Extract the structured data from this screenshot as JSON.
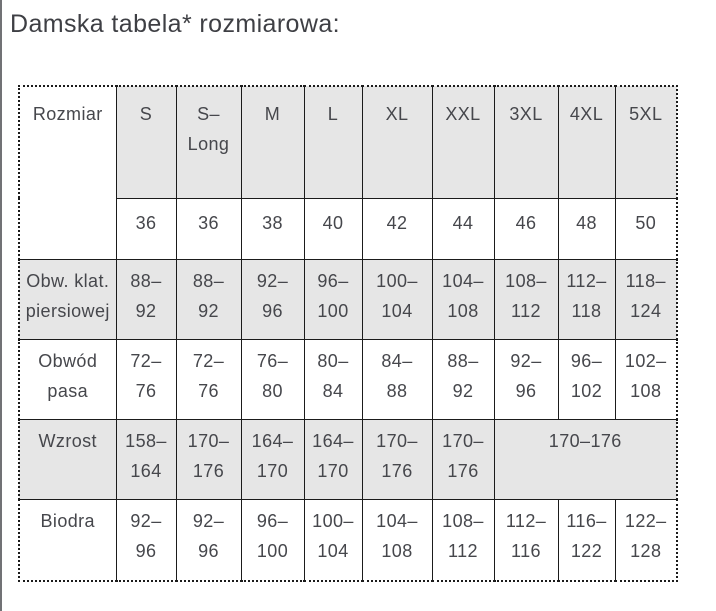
{
  "page": {
    "title": "Damska tabela* rozmiarowa:"
  },
  "colors": {
    "shade": "#e6e6e6",
    "text": "#46474c",
    "title_text": "#3e3f44",
    "border": "#1b1b1b",
    "edge_line": "#717275",
    "background": "#ffffff"
  },
  "table": {
    "corner_label": "Rozmiar",
    "size_labels": [
      "S",
      "S–\nLong",
      "M",
      "L",
      "XL",
      "XXL",
      "3XL",
      "4XL",
      "5XL"
    ],
    "confection_numbers": [
      "36",
      "36",
      "38",
      "40",
      "42",
      "44",
      "46",
      "48",
      "50"
    ],
    "measurement_rows": [
      {
        "label": "Obw. klat.\npiersiowej",
        "values": [
          "88–\n92",
          "88–\n92",
          "92–\n96",
          "96–\n100",
          "100–\n104",
          "104–\n108",
          "108–\n112",
          "112–\n118",
          "118–\n124"
        ]
      },
      {
        "label": "Obwód\npasa",
        "values": [
          "72–\n76",
          "72–\n76",
          "76–\n80",
          "80–\n84",
          "84–\n88",
          "88–\n92",
          "92–\n96",
          "96–\n102",
          "102–\n108"
        ]
      },
      {
        "label": "Wzrost",
        "values": [
          "158–\n164",
          "170–\n176",
          "164–\n170",
          "164–\n170",
          "170–\n176",
          "170–\n176"
        ],
        "merged_value": "170–176"
      },
      {
        "label": "Biodra",
        "values": [
          "92–\n96",
          "92–\n96",
          "96–\n100",
          "100–\n104",
          "104–\n108",
          "108–\n112",
          "112–\n116",
          "116–\n122",
          "122–\n128"
        ]
      }
    ]
  }
}
